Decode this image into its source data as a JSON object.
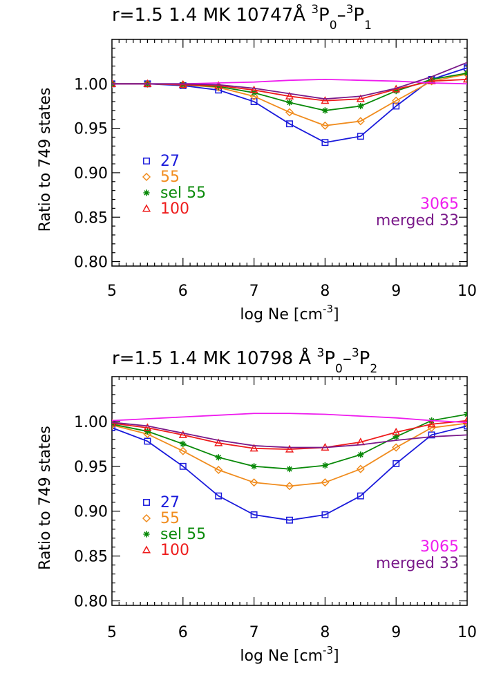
{
  "chart_data": [
    {
      "type": "line",
      "title_main": "r=1.5 1.4 MK 10747Å",
      "title_term": {
        "upper": "3",
        "lower_a": "P",
        "sub_a": "0",
        "dash": "–",
        "upper2": "3",
        "lower_b": "P",
        "sub_b": "1"
      },
      "xlabel": "log Ne [cm",
      "xlabel_sup": "-3",
      "xlabel_end": "]",
      "ylabel": "Ratio to 749 states",
      "xlim": [
        5,
        10
      ],
      "ylim": [
        0.795,
        1.05
      ],
      "x_ticks": [
        5,
        6,
        7,
        8,
        9,
        10
      ],
      "x_tick_labels": [
        "5",
        "6",
        "7",
        "8",
        "9",
        "10"
      ],
      "y_ticks": [
        0.8,
        0.85,
        0.9,
        0.95,
        1.0
      ],
      "y_tick_labels": [
        "0.80",
        "0.85",
        "0.90",
        "0.95",
        "1.00"
      ],
      "x": [
        5,
        5.5,
        6,
        6.5,
        7,
        7.5,
        8,
        8.5,
        9,
        9.5,
        10
      ],
      "series": [
        {
          "name": "27",
          "color": "#1a1adb",
          "marker": "square",
          "values": [
            1.0,
            1.0,
            0.998,
            0.993,
            0.98,
            0.955,
            0.934,
            0.941,
            0.975,
            1.005,
            1.018
          ]
        },
        {
          "name": "55",
          "color": "#f08c1e",
          "marker": "diamond",
          "values": [
            1.0,
            1.0,
            0.999,
            0.996,
            0.986,
            0.968,
            0.953,
            0.958,
            0.981,
            1.003,
            1.011
          ]
        },
        {
          "name": "sel 55",
          "color": "#0a8a0a",
          "marker": "asterisk",
          "values": [
            1.0,
            1.0,
            0.999,
            0.997,
            0.99,
            0.979,
            0.97,
            0.975,
            0.992,
            1.005,
            1.012
          ]
        },
        {
          "name": "100",
          "color": "#ee1c1c",
          "marker": "triangle",
          "values": [
            1.0,
            1.0,
            0.999,
            0.998,
            0.993,
            0.986,
            0.981,
            0.983,
            0.994,
            1.003,
            1.005
          ]
        },
        {
          "name": "3065",
          "color": "#ee1cee",
          "marker": "none",
          "values": [
            1.0,
            1.0,
            1.0,
            1.001,
            1.002,
            1.004,
            1.005,
            1.004,
            1.003,
            1.001,
            1.0
          ]
        },
        {
          "name": "merged 33",
          "color": "#7a1a8a",
          "marker": "none",
          "values": [
            1.0,
            1.0,
            1.0,
            0.999,
            0.995,
            0.989,
            0.983,
            0.986,
            0.995,
            1.008,
            1.024
          ]
        }
      ]
    },
    {
      "type": "line",
      "title_main": "r=1.5 1.4 MK 10798 Å",
      "title_term": {
        "upper": "3",
        "lower_a": "P",
        "sub_a": "0",
        "dash": "–",
        "upper2": "3",
        "lower_b": "P",
        "sub_b": "2"
      },
      "xlabel": "log Ne [cm",
      "xlabel_sup": "-3",
      "xlabel_end": "]",
      "ylabel": "Ratio to 749 states",
      "xlim": [
        5,
        10
      ],
      "ylim": [
        0.795,
        1.05
      ],
      "x_ticks": [
        5,
        6,
        7,
        8,
        9,
        10
      ],
      "x_tick_labels": [
        "5",
        "6",
        "7",
        "8",
        "9",
        "10"
      ],
      "y_ticks": [
        0.8,
        0.85,
        0.9,
        0.95,
        1.0
      ],
      "y_tick_labels": [
        "0.80",
        "0.85",
        "0.90",
        "0.95",
        "1.00"
      ],
      "x": [
        5,
        5.5,
        6,
        6.5,
        7,
        7.5,
        8,
        8.5,
        9,
        9.5,
        10
      ],
      "series": [
        {
          "name": "27",
          "color": "#1a1adb",
          "marker": "square",
          "values": [
            0.993,
            0.978,
            0.95,
            0.917,
            0.896,
            0.89,
            0.896,
            0.917,
            0.953,
            0.985,
            0.995
          ]
        },
        {
          "name": "55",
          "color": "#f08c1e",
          "marker": "diamond",
          "values": [
            0.996,
            0.986,
            0.967,
            0.946,
            0.932,
            0.928,
            0.932,
            0.947,
            0.971,
            0.993,
            0.998
          ]
        },
        {
          "name": "sel 55",
          "color": "#0a8a0a",
          "marker": "asterisk",
          "values": [
            0.997,
            0.989,
            0.975,
            0.96,
            0.95,
            0.947,
            0.951,
            0.963,
            0.983,
            1.001,
            1.008
          ]
        },
        {
          "name": "100",
          "color": "#ee1c1c",
          "marker": "triangle",
          "values": [
            0.998,
            0.993,
            0.985,
            0.976,
            0.97,
            0.969,
            0.971,
            0.977,
            0.988,
            0.997,
            1.001
          ]
        },
        {
          "name": "3065",
          "color": "#ee1cee",
          "marker": "none",
          "values": [
            1.001,
            1.003,
            1.005,
            1.007,
            1.009,
            1.009,
            1.008,
            1.006,
            1.004,
            1.001,
            0.999
          ]
        },
        {
          "name": "merged 33",
          "color": "#7a1a8a",
          "marker": "none",
          "values": [
            0.999,
            0.995,
            0.987,
            0.979,
            0.973,
            0.971,
            0.971,
            0.974,
            0.979,
            0.983,
            0.985
          ]
        }
      ]
    }
  ]
}
